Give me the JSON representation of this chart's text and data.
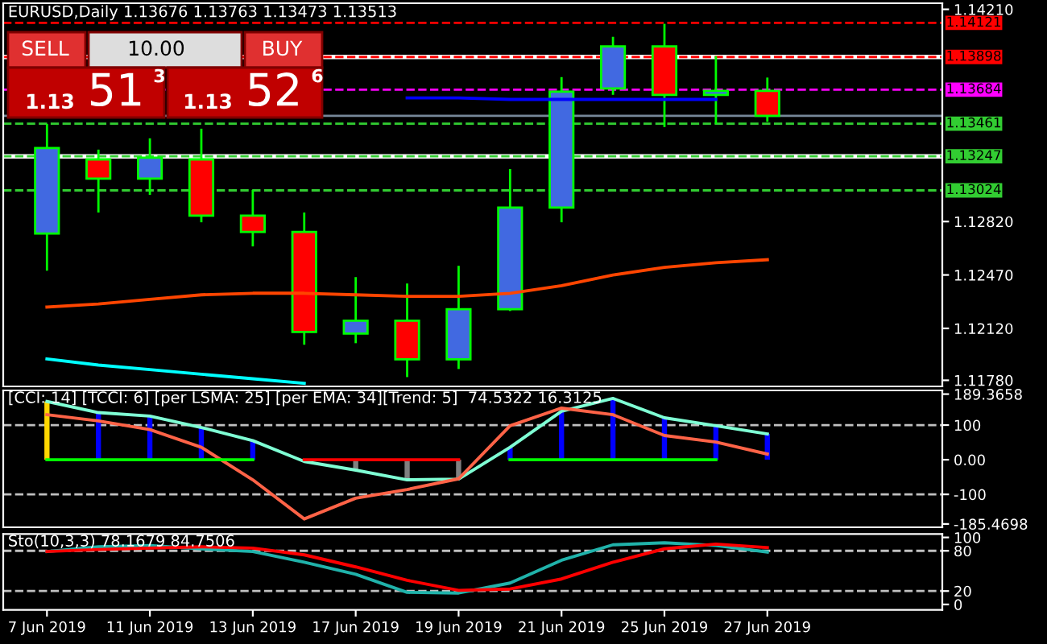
{
  "chart_data": [
    {
      "type": "candlestick",
      "title": "EURUSD,Daily 1.13676 1.13763 1.13473 1.13513",
      "categories": [
        null,
        null,
        null,
        null,
        null,
        null,
        null,
        null,
        null,
        null,
        null,
        null,
        null,
        null,
        null
      ],
      "ohlc": [
        [
          1.12741,
          1.1346,
          1.12498,
          1.13301
        ],
        [
          1.13227,
          1.13291,
          1.12879,
          1.13101
        ],
        [
          1.13101,
          1.13365,
          1.12995,
          1.13238
        ],
        [
          1.13227,
          1.13428,
          1.12815,
          1.12858
        ],
        [
          1.12858,
          1.13027,
          1.12657,
          1.12752
        ],
        [
          1.12752,
          1.12879,
          1.12013,
          1.12097
        ],
        [
          1.12086,
          1.12456,
          1.12023,
          1.12171
        ],
        [
          1.12171,
          1.12414,
          1.11801,
          1.11917
        ],
        [
          1.11917,
          1.1253,
          1.11854,
          1.12245
        ],
        [
          1.12245,
          1.13164,
          1.12234,
          1.12911
        ],
        [
          1.12911,
          1.13766,
          1.12815,
          1.13671
        ],
        [
          1.13692,
          1.1403,
          1.1365,
          1.13967
        ],
        [
          1.13967,
          1.14115,
          1.13439,
          1.1365
        ],
        [
          1.1365,
          1.13904,
          1.1346,
          1.13676
        ],
        [
          1.13676,
          1.13763,
          1.13473,
          1.13513
        ]
      ],
      "colors": [
        "#4169e1",
        "#ff0000",
        "#4169e1",
        "#ff0000",
        "#ff0000",
        "#ff0000",
        "#4169e1",
        "#ff0000",
        "#4169e1",
        "#4169e1",
        "#4169e1",
        "#4169e1",
        "#ff0000",
        "#4169e1",
        "#ff0000"
      ],
      "series": [
        {
          "type": "line",
          "color": "#ff4500",
          "values": [
            1.1226,
            1.1228,
            1.1231,
            1.1234,
            1.1235,
            1.1235,
            1.1234,
            1.1233,
            1.1233,
            1.1235,
            1.124,
            1.1247,
            1.1252,
            1.1255,
            1.1257
          ]
        },
        {
          "type": "line",
          "color": "#0000ff",
          "values": [
            null,
            null,
            null,
            null,
            null,
            null,
            null,
            1.1363,
            1.1363,
            1.1362,
            1.1362,
            1.1362,
            1.1362,
            1.1362,
            null
          ]
        },
        {
          "type": "line",
          "color": "#00ffff",
          "values": [
            1.1192,
            1.1188,
            1.1185,
            1.1182,
            1.1179,
            1.1176,
            null,
            null,
            null,
            null,
            null,
            null,
            null,
            null,
            null
          ]
        }
      ],
      "ylim": [
        1.1174,
        1.1425
      ],
      "yticks": [
        {
          "value": 1.1421,
          "label": "1.14210"
        },
        {
          "value": 1.1282,
          "label": "1.12820"
        },
        {
          "value": 1.1247,
          "label": "1.12470"
        },
        {
          "value": 1.1212,
          "label": "1.12120"
        },
        {
          "value": 1.1178,
          "label": "1.11780"
        }
      ],
      "ref_lines": [
        {
          "axis": "y",
          "value": 1.14121,
          "label": "1.14121",
          "color": "#ff0000",
          "line_style": "dashed"
        },
        {
          "axis": "y",
          "value": 1.13898,
          "color": "#ffffff",
          "line_style": "solid"
        },
        {
          "axis": "y",
          "value": 1.13898,
          "label": "1.13898",
          "color": "#ff0000",
          "line_style": "dashed"
        },
        {
          "axis": "y",
          "value": 1.13684,
          "label": "1.13684",
          "color": "#ff00ff",
          "line_style": "dashed"
        },
        {
          "axis": "y",
          "value": 1.13513,
          "color": "#778899",
          "line_style": "solid"
        },
        {
          "axis": "y",
          "value": 1.13461,
          "label": "1.13461",
          "color": "#32cd32",
          "line_style": "dashed"
        },
        {
          "axis": "y",
          "value": 1.13247,
          "color": "#ffffff",
          "line_style": "solid"
        },
        {
          "axis": "y",
          "value": 1.13247,
          "label": "1.13247",
          "color": "#32cd32",
          "line_style": "dashed"
        },
        {
          "axis": "y",
          "value": 1.13024,
          "label": "1.13024",
          "color": "#32cd32",
          "line_style": "dashed"
        }
      ],
      "annotations": [
        "SELL",
        "10.00",
        "BUY",
        "1.13",
        "51",
        "3",
        "1.13",
        "52",
        "6"
      ],
      "tick_labels": "y"
    },
    {
      "type": "bar",
      "title": "[CCI: 14] [TCCI: 6] [per LSMA: 25] [per EMA: 34][Trend: 5]  74.5322 16.3125",
      "categories": [
        null,
        null,
        null,
        null,
        null,
        null,
        null,
        null,
        null,
        null,
        null,
        null,
        null,
        null,
        null
      ],
      "series": [
        {
          "type": "bar",
          "colors": [
            "#ffd700",
            "#0000ff",
            "#0000ff",
            "#0000ff",
            "#0000ff",
            "#808080",
            "#808080",
            "#808080",
            "#808080",
            "#0000ff",
            "#0000ff",
            "#0000ff",
            "#0000ff",
            "#0000ff",
            "#0000ff"
          ],
          "values": [
            168,
            136,
            126,
            93,
            55,
            null,
            -30,
            -58,
            -56,
            36,
            140,
            177,
            121,
            98,
            74.5322
          ]
        },
        {
          "type": "line",
          "color": "#7fffd4",
          "values": [
            168,
            136,
            126,
            93,
            55,
            -5,
            -30,
            -58,
            -56,
            36,
            140,
            177,
            121,
            98,
            74.5322
          ]
        },
        {
          "type": "line",
          "color": "#ff6347",
          "values": [
            130,
            112,
            87,
            36,
            -58,
            -171,
            -111,
            -86,
            -55,
            98,
            149,
            130,
            70,
            51,
            16.3125
          ]
        },
        {
          "type": "line",
          "color": "#00ff00",
          "values": [
            0,
            0,
            0,
            0,
            0,
            null,
            null,
            null,
            null,
            0,
            0,
            0,
            0,
            0,
            null
          ]
        },
        {
          "type": "line",
          "color": "#ff0000",
          "values": [
            null,
            null,
            null,
            null,
            null,
            0,
            0,
            0,
            0,
            null,
            null,
            null,
            null,
            null,
            null
          ]
        }
      ],
      "ylim": [
        -195,
        200
      ],
      "yticks": [
        189.3658,
        100,
        {
          "value": 0,
          "label": "0.00"
        },
        -100,
        -185.4698
      ],
      "ref_lines": [
        {
          "axis": "y",
          "value": 100,
          "color": "#c0c0c0",
          "line_style": "dashed"
        },
        {
          "axis": "y",
          "value": -100,
          "color": "#c0c0c0",
          "line_style": "dashed"
        }
      ],
      "tick_labels": "y"
    },
    {
      "type": "line",
      "title": "Sto(10,3,3) 78.1679 84.7506",
      "categories": [
        "7 Jun 2019",
        null,
        "11 Jun 2019",
        null,
        "13 Jun 2019",
        null,
        "17 Jun 2019",
        null,
        "19 Jun 2019",
        null,
        "21 Jun 2019",
        null,
        "25 Jun 2019",
        null,
        "27 Jun 2019"
      ],
      "series": [
        {
          "color": "#20b2aa",
          "values": [
            78.9,
            86,
            88,
            83,
            79,
            63,
            45,
            18,
            17,
            32,
            66,
            89,
            92,
            88,
            78.1679
          ]
        },
        {
          "color": "#ff0000",
          "values": [
            79,
            82,
            84,
            86,
            84,
            74,
            56,
            36,
            21,
            23,
            38,
            63,
            83,
            90,
            84.7506
          ]
        }
      ],
      "ylim": [
        -8,
        105
      ],
      "yticks": [
        0,
        20,
        80,
        100
      ],
      "ref_lines": [
        {
          "axis": "y",
          "value": 80,
          "color": "#c0c0c0",
          "line_style": "dashed"
        },
        {
          "axis": "y",
          "value": 20,
          "color": "#c0c0c0",
          "line_style": "dashed"
        }
      ]
    }
  ]
}
